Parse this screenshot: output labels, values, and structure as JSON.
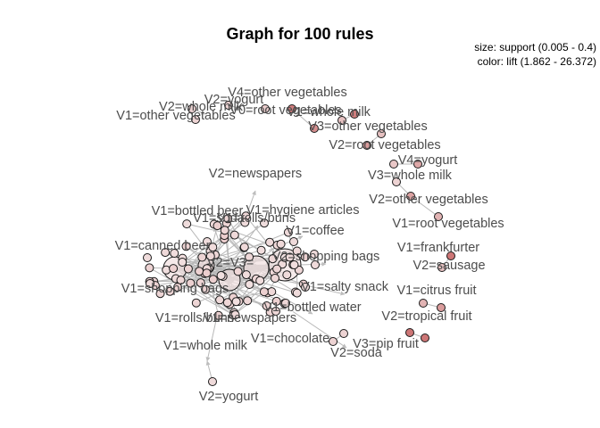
{
  "title": "Graph for 100 rules",
  "legend": {
    "size": "size: support (0.005 - 0.4)",
    "color": "color: lift (1.862 - 26.372)"
  },
  "colors": {
    "edge": "#b8b8b8",
    "node_stroke": "#1a1a1a",
    "node_light": "#f3e6e6",
    "node_dark": "#c96a6a",
    "label": "#4d4d4d"
  },
  "labels": [
    "V4=other vegetables",
    "V2=yogurt",
    "V2=whole milk",
    "V0=root vegetables",
    "V1=whole milk",
    "V1=other vegetables",
    "V3=other vegetables",
    "V2=root vegetables",
    "V4=yogurt",
    "V3=whole milk",
    "V2=newspapers",
    "V2=other vegetables",
    "V1=bottled beer",
    "V1=hygiene articles",
    "V1=soda",
    "V1=rolls/buns",
    "V1=root vegetables",
    "V1=coffee",
    "V1=canned beer",
    "V1=frankfurter",
    "V2=shopping bags",
    "V2=sausage",
    "V2=V3=",
    "V1=shopping bags",
    "V1=salty snack",
    "V1=citrus fruit",
    "V1=bottled water",
    "V2=tropical fruit",
    "V1=rolls/buns",
    "V1=newspapers",
    "V1=chocolate",
    "V3=pip fruit",
    "V2=soda",
    "V1=whole milk",
    "V2=yogurt"
  ]
}
